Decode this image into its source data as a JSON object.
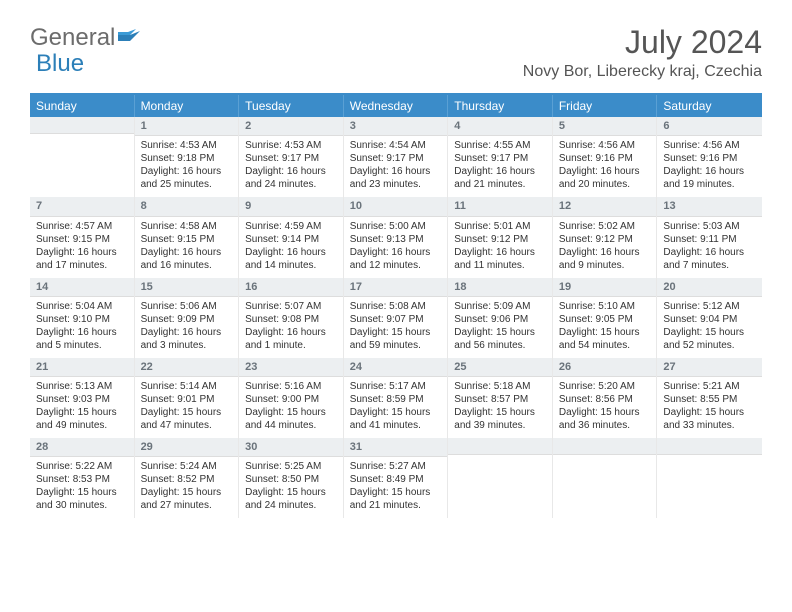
{
  "brand": {
    "word1": "General",
    "word2": "Blue"
  },
  "title": "July 2024",
  "location": "Novy Bor, Liberecky kraj, Czechia",
  "colors": {
    "header_bg": "#3b8cc9",
    "header_text": "#ffffff",
    "daynum_bg": "#eceff1",
    "daynum_text": "#6a737b",
    "body_text": "#333333",
    "page_bg": "#ffffff"
  },
  "day_names": [
    "Sunday",
    "Monday",
    "Tuesday",
    "Wednesday",
    "Thursday",
    "Friday",
    "Saturday"
  ],
  "weeks": [
    [
      {
        "day": "",
        "sunrise": "",
        "sunset": "",
        "daylight1": "",
        "daylight2": ""
      },
      {
        "day": "1",
        "sunrise": "Sunrise: 4:53 AM",
        "sunset": "Sunset: 9:18 PM",
        "daylight1": "Daylight: 16 hours",
        "daylight2": "and 25 minutes."
      },
      {
        "day": "2",
        "sunrise": "Sunrise: 4:53 AM",
        "sunset": "Sunset: 9:17 PM",
        "daylight1": "Daylight: 16 hours",
        "daylight2": "and 24 minutes."
      },
      {
        "day": "3",
        "sunrise": "Sunrise: 4:54 AM",
        "sunset": "Sunset: 9:17 PM",
        "daylight1": "Daylight: 16 hours",
        "daylight2": "and 23 minutes."
      },
      {
        "day": "4",
        "sunrise": "Sunrise: 4:55 AM",
        "sunset": "Sunset: 9:17 PM",
        "daylight1": "Daylight: 16 hours",
        "daylight2": "and 21 minutes."
      },
      {
        "day": "5",
        "sunrise": "Sunrise: 4:56 AM",
        "sunset": "Sunset: 9:16 PM",
        "daylight1": "Daylight: 16 hours",
        "daylight2": "and 20 minutes."
      },
      {
        "day": "6",
        "sunrise": "Sunrise: 4:56 AM",
        "sunset": "Sunset: 9:16 PM",
        "daylight1": "Daylight: 16 hours",
        "daylight2": "and 19 minutes."
      }
    ],
    [
      {
        "day": "7",
        "sunrise": "Sunrise: 4:57 AM",
        "sunset": "Sunset: 9:15 PM",
        "daylight1": "Daylight: 16 hours",
        "daylight2": "and 17 minutes."
      },
      {
        "day": "8",
        "sunrise": "Sunrise: 4:58 AM",
        "sunset": "Sunset: 9:15 PM",
        "daylight1": "Daylight: 16 hours",
        "daylight2": "and 16 minutes."
      },
      {
        "day": "9",
        "sunrise": "Sunrise: 4:59 AM",
        "sunset": "Sunset: 9:14 PM",
        "daylight1": "Daylight: 16 hours",
        "daylight2": "and 14 minutes."
      },
      {
        "day": "10",
        "sunrise": "Sunrise: 5:00 AM",
        "sunset": "Sunset: 9:13 PM",
        "daylight1": "Daylight: 16 hours",
        "daylight2": "and 12 minutes."
      },
      {
        "day": "11",
        "sunrise": "Sunrise: 5:01 AM",
        "sunset": "Sunset: 9:12 PM",
        "daylight1": "Daylight: 16 hours",
        "daylight2": "and 11 minutes."
      },
      {
        "day": "12",
        "sunrise": "Sunrise: 5:02 AM",
        "sunset": "Sunset: 9:12 PM",
        "daylight1": "Daylight: 16 hours",
        "daylight2": "and 9 minutes."
      },
      {
        "day": "13",
        "sunrise": "Sunrise: 5:03 AM",
        "sunset": "Sunset: 9:11 PM",
        "daylight1": "Daylight: 16 hours",
        "daylight2": "and 7 minutes."
      }
    ],
    [
      {
        "day": "14",
        "sunrise": "Sunrise: 5:04 AM",
        "sunset": "Sunset: 9:10 PM",
        "daylight1": "Daylight: 16 hours",
        "daylight2": "and 5 minutes."
      },
      {
        "day": "15",
        "sunrise": "Sunrise: 5:06 AM",
        "sunset": "Sunset: 9:09 PM",
        "daylight1": "Daylight: 16 hours",
        "daylight2": "and 3 minutes."
      },
      {
        "day": "16",
        "sunrise": "Sunrise: 5:07 AM",
        "sunset": "Sunset: 9:08 PM",
        "daylight1": "Daylight: 16 hours",
        "daylight2": "and 1 minute."
      },
      {
        "day": "17",
        "sunrise": "Sunrise: 5:08 AM",
        "sunset": "Sunset: 9:07 PM",
        "daylight1": "Daylight: 15 hours",
        "daylight2": "and 59 minutes."
      },
      {
        "day": "18",
        "sunrise": "Sunrise: 5:09 AM",
        "sunset": "Sunset: 9:06 PM",
        "daylight1": "Daylight: 15 hours",
        "daylight2": "and 56 minutes."
      },
      {
        "day": "19",
        "sunrise": "Sunrise: 5:10 AM",
        "sunset": "Sunset: 9:05 PM",
        "daylight1": "Daylight: 15 hours",
        "daylight2": "and 54 minutes."
      },
      {
        "day": "20",
        "sunrise": "Sunrise: 5:12 AM",
        "sunset": "Sunset: 9:04 PM",
        "daylight1": "Daylight: 15 hours",
        "daylight2": "and 52 minutes."
      }
    ],
    [
      {
        "day": "21",
        "sunrise": "Sunrise: 5:13 AM",
        "sunset": "Sunset: 9:03 PM",
        "daylight1": "Daylight: 15 hours",
        "daylight2": "and 49 minutes."
      },
      {
        "day": "22",
        "sunrise": "Sunrise: 5:14 AM",
        "sunset": "Sunset: 9:01 PM",
        "daylight1": "Daylight: 15 hours",
        "daylight2": "and 47 minutes."
      },
      {
        "day": "23",
        "sunrise": "Sunrise: 5:16 AM",
        "sunset": "Sunset: 9:00 PM",
        "daylight1": "Daylight: 15 hours",
        "daylight2": "and 44 minutes."
      },
      {
        "day": "24",
        "sunrise": "Sunrise: 5:17 AM",
        "sunset": "Sunset: 8:59 PM",
        "daylight1": "Daylight: 15 hours",
        "daylight2": "and 41 minutes."
      },
      {
        "day": "25",
        "sunrise": "Sunrise: 5:18 AM",
        "sunset": "Sunset: 8:57 PM",
        "daylight1": "Daylight: 15 hours",
        "daylight2": "and 39 minutes."
      },
      {
        "day": "26",
        "sunrise": "Sunrise: 5:20 AM",
        "sunset": "Sunset: 8:56 PM",
        "daylight1": "Daylight: 15 hours",
        "daylight2": "and 36 minutes."
      },
      {
        "day": "27",
        "sunrise": "Sunrise: 5:21 AM",
        "sunset": "Sunset: 8:55 PM",
        "daylight1": "Daylight: 15 hours",
        "daylight2": "and 33 minutes."
      }
    ],
    [
      {
        "day": "28",
        "sunrise": "Sunrise: 5:22 AM",
        "sunset": "Sunset: 8:53 PM",
        "daylight1": "Daylight: 15 hours",
        "daylight2": "and 30 minutes."
      },
      {
        "day": "29",
        "sunrise": "Sunrise: 5:24 AM",
        "sunset": "Sunset: 8:52 PM",
        "daylight1": "Daylight: 15 hours",
        "daylight2": "and 27 minutes."
      },
      {
        "day": "30",
        "sunrise": "Sunrise: 5:25 AM",
        "sunset": "Sunset: 8:50 PM",
        "daylight1": "Daylight: 15 hours",
        "daylight2": "and 24 minutes."
      },
      {
        "day": "31",
        "sunrise": "Sunrise: 5:27 AM",
        "sunset": "Sunset: 8:49 PM",
        "daylight1": "Daylight: 15 hours",
        "daylight2": "and 21 minutes."
      },
      {
        "day": "",
        "sunrise": "",
        "sunset": "",
        "daylight1": "",
        "daylight2": ""
      },
      {
        "day": "",
        "sunrise": "",
        "sunset": "",
        "daylight1": "",
        "daylight2": ""
      },
      {
        "day": "",
        "sunrise": "",
        "sunset": "",
        "daylight1": "",
        "daylight2": ""
      }
    ]
  ]
}
